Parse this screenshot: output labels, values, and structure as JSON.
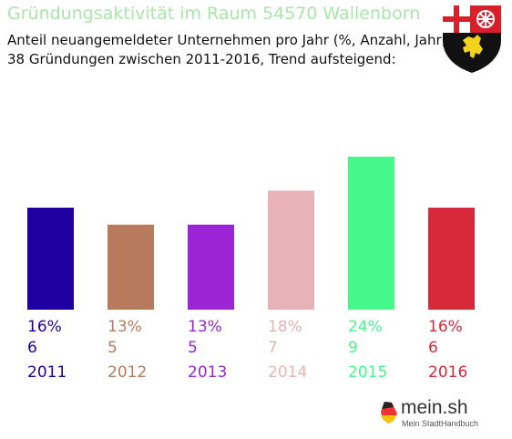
{
  "header": {
    "title": "Gründungsaktivität im Raum 54570 Wallenborn",
    "subtitle_1": "Anteil neuangemeldeter Unternehmen pro Jahr (%, Anzahl, Jahr)",
    "subtitle_2": "38 Gründungen zwischen 2011-2016, Trend aufsteigend:"
  },
  "chart_data": {
    "type": "bar",
    "categories": [
      "2011",
      "2012",
      "2013",
      "2014",
      "2015",
      "2016"
    ],
    "values": [
      6,
      5,
      5,
      7,
      9,
      6
    ],
    "percent_labels": [
      "16%",
      "13%",
      "13%",
      "18%",
      "24%",
      "16%"
    ],
    "count_labels": [
      "6",
      "5",
      "5",
      "7",
      "9",
      "6"
    ],
    "colors": [
      "#1e00a0",
      "#b87a5c",
      "#9a24d6",
      "#e8b3b8",
      "#47f78a",
      "#d62a3a"
    ],
    "ylim": [
      0,
      9
    ],
    "grid": false,
    "legend": "none"
  },
  "crest": {
    "icons": [
      "coat-of-arms",
      "cross",
      "wheel",
      "lion"
    ]
  },
  "logo": {
    "name": "mein.sh",
    "tagline": "Mein StadtHandbuch"
  }
}
